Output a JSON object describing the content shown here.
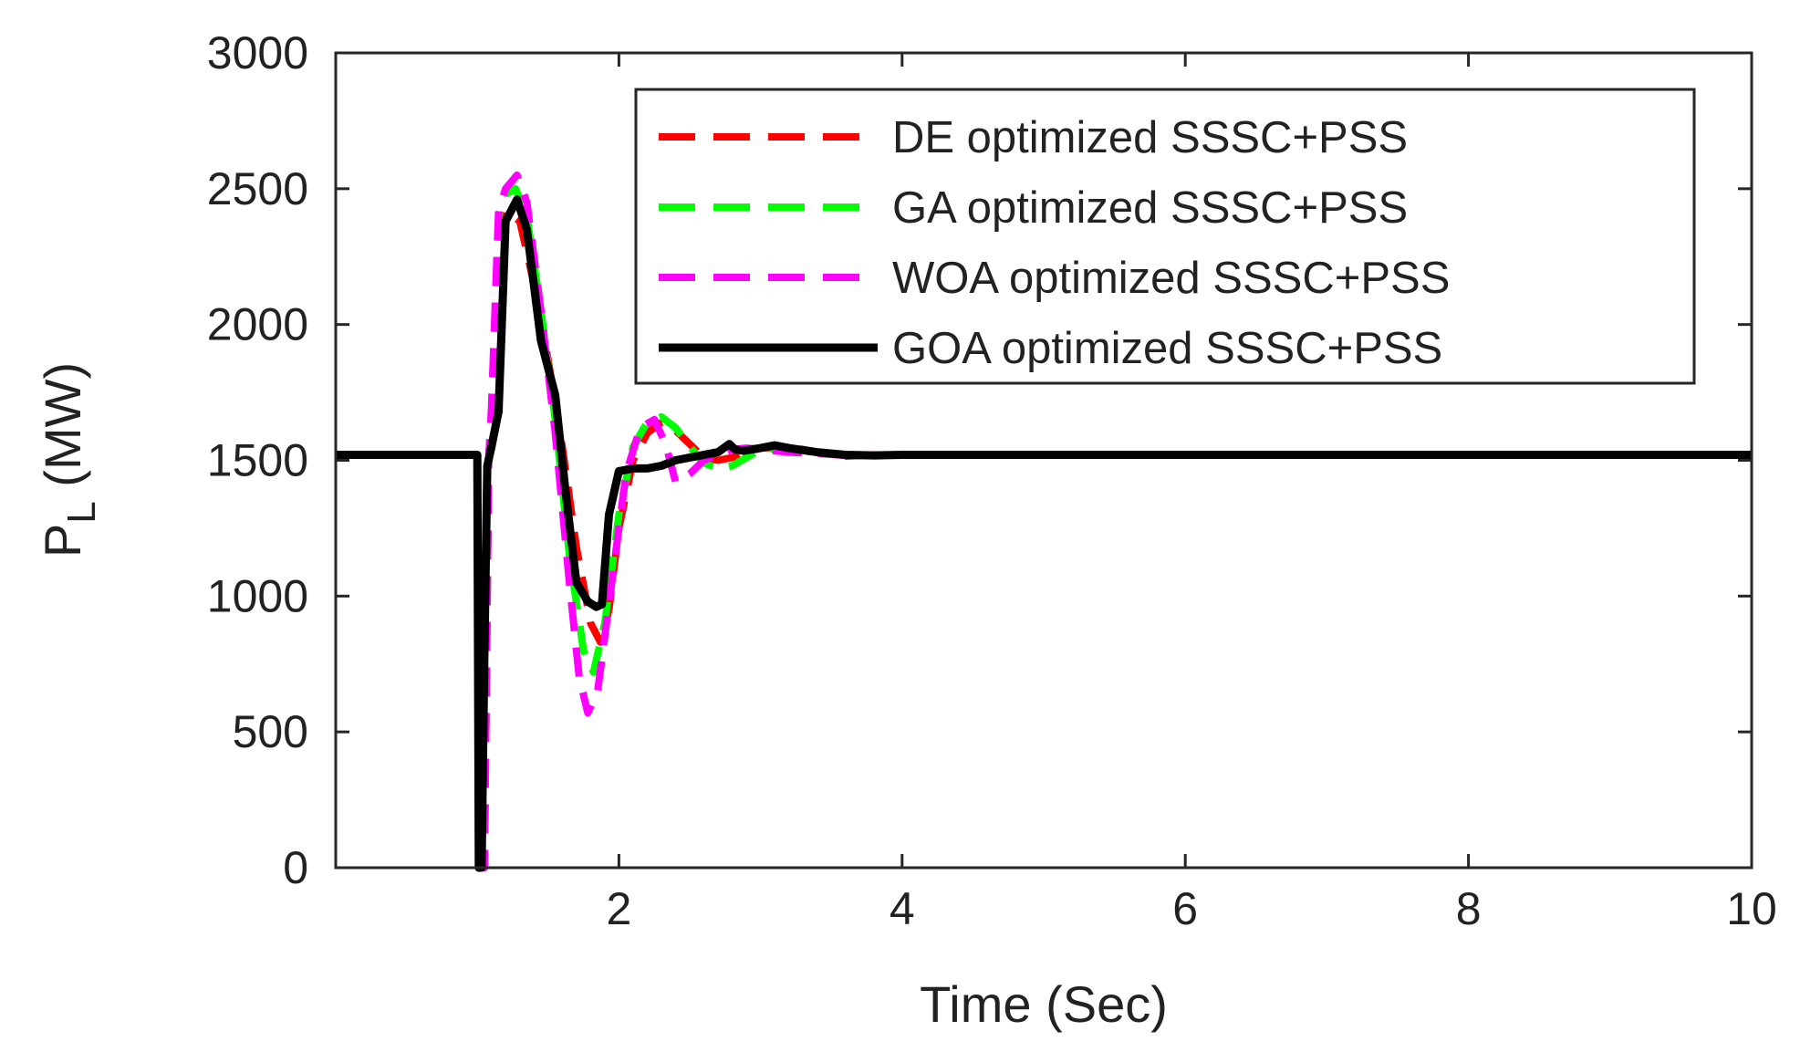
{
  "chart_data": {
    "type": "line",
    "title": "",
    "xlabel": "Time (Sec)",
    "ylabel_main": "P",
    "ylabel_sub": "L",
    "ylabel_unit": "(MW)",
    "xlim": [
      0,
      10
    ],
    "ylim": [
      0,
      3000
    ],
    "xticks": [
      2,
      4,
      6,
      8,
      10
    ],
    "yticks": [
      0,
      500,
      1000,
      1500,
      2000,
      2500,
      3000
    ],
    "grid": false,
    "legend_position": "top-right",
    "series": [
      {
        "name": "DE optimized SSSC+PSS",
        "color": "#ff0000",
        "style": "dashed",
        "x": [
          0,
          1.0,
          1.02,
          1.05,
          1.08,
          1.1,
          1.15,
          1.2,
          1.3,
          1.4,
          1.5,
          1.6,
          1.7,
          1.8,
          1.87,
          1.93,
          2.0,
          2.1,
          2.2,
          2.3,
          2.4,
          2.5,
          2.6,
          2.7,
          2.8,
          2.9,
          3.0,
          3.2,
          3.4,
          3.6,
          3.8,
          4.0,
          4.5,
          5.0,
          6.0,
          8.0,
          10.0
        ],
        "y": [
          1520,
          1520,
          0,
          0,
          1500,
          1650,
          2350,
          2420,
          2380,
          2150,
          1870,
          1550,
          1180,
          900,
          830,
          950,
          1250,
          1500,
          1600,
          1640,
          1610,
          1560,
          1510,
          1500,
          1510,
          1530,
          1545,
          1550,
          1530,
          1515,
          1520,
          1520,
          1520,
          1520,
          1520,
          1520,
          1520
        ]
      },
      {
        "name": "GA optimized SSSC+PSS",
        "color": "#00ff00",
        "style": "dashed",
        "x": [
          0,
          1.0,
          1.02,
          1.05,
          1.08,
          1.1,
          1.15,
          1.2,
          1.27,
          1.35,
          1.45,
          1.55,
          1.65,
          1.75,
          1.82,
          1.9,
          2.0,
          2.1,
          2.2,
          2.3,
          2.4,
          2.5,
          2.6,
          2.7,
          2.8,
          2.9,
          3.0,
          3.2,
          3.4,
          3.6,
          3.8,
          4.0,
          4.5,
          5.0,
          6.0,
          8.0,
          10.0
        ],
        "y": [
          1520,
          1520,
          0,
          0,
          1500,
          1680,
          2400,
          2480,
          2500,
          2400,
          2050,
          1650,
          1150,
          800,
          720,
          900,
          1300,
          1550,
          1640,
          1660,
          1620,
          1550,
          1490,
          1470,
          1480,
          1510,
          1540,
          1545,
          1530,
          1518,
          1520,
          1520,
          1520,
          1520,
          1520,
          1520,
          1520
        ]
      },
      {
        "name": "WOA optimized SSSC+PSS",
        "color": "#ff00ff",
        "style": "dashed",
        "x": [
          0,
          1.0,
          1.02,
          1.05,
          1.08,
          1.1,
          1.15,
          1.2,
          1.28,
          1.35,
          1.45,
          1.55,
          1.65,
          1.72,
          1.78,
          1.85,
          1.95,
          2.05,
          2.15,
          2.25,
          2.33,
          2.4,
          2.5,
          2.6,
          2.7,
          2.8,
          2.9,
          3.0,
          3.2,
          3.4,
          3.6,
          3.8,
          4.0,
          4.5,
          5.0,
          6.0,
          8.0,
          10.0
        ],
        "y": [
          1520,
          1520,
          0,
          0,
          1500,
          1690,
          2420,
          2500,
          2550,
          2450,
          2050,
          1600,
          1050,
          700,
          570,
          650,
          1050,
          1450,
          1620,
          1650,
          1560,
          1420,
          1450,
          1500,
          1520,
          1540,
          1545,
          1540,
          1530,
          1525,
          1518,
          1520,
          1520,
          1520,
          1520,
          1520,
          1520,
          1520
        ]
      },
      {
        "name": "GOA optimized SSSC+PSS",
        "color": "#000000",
        "style": "solid",
        "x": [
          0,
          1.0,
          1.01,
          1.03,
          1.05,
          1.07,
          1.1,
          1.15,
          1.2,
          1.28,
          1.35,
          1.45,
          1.55,
          1.62,
          1.7,
          1.78,
          1.84,
          1.88,
          1.93,
          2.0,
          2.1,
          2.2,
          2.3,
          2.4,
          2.5,
          2.6,
          2.7,
          2.78,
          2.82,
          2.88,
          3.0,
          3.1,
          3.2,
          3.4,
          3.6,
          3.8,
          4.0,
          4.5,
          5.0,
          6.0,
          8.0,
          10.0
        ],
        "y": [
          1520,
          1520,
          0,
          0,
          800,
          1480,
          1550,
          1680,
          2380,
          2460,
          2350,
          1940,
          1740,
          1400,
          1050,
          980,
          960,
          970,
          1300,
          1460,
          1470,
          1470,
          1480,
          1500,
          1510,
          1520,
          1530,
          1560,
          1540,
          1535,
          1545,
          1555,
          1545,
          1530,
          1520,
          1518,
          1520,
          1520,
          1520,
          1520,
          1520,
          1520
        ]
      }
    ]
  }
}
